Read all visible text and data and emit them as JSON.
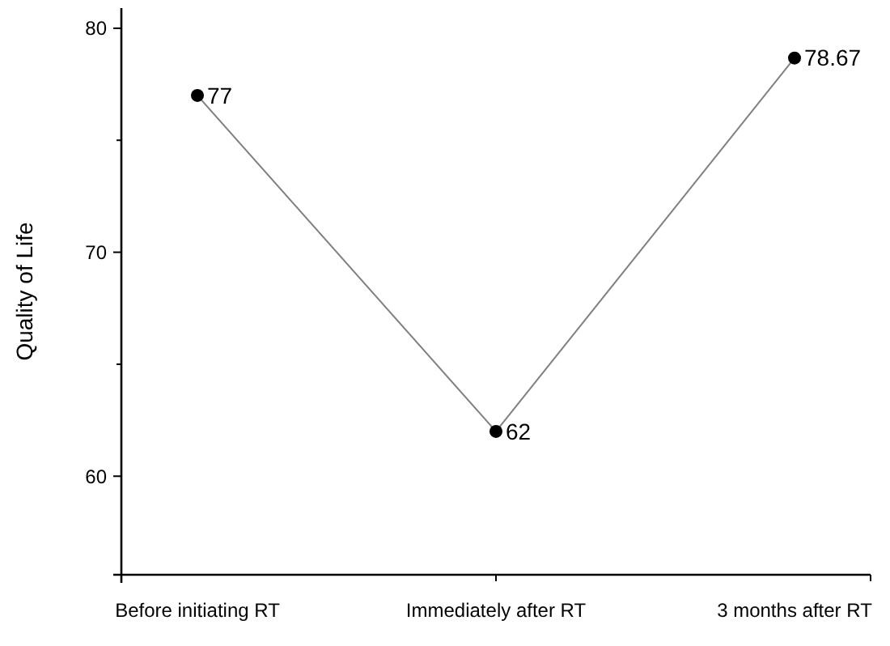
{
  "chart_data": {
    "type": "line",
    "ylabel": "Quality of Life",
    "categories": [
      "Before initiating RT",
      "Immediately after RT",
      "3 months after RT"
    ],
    "series": [
      {
        "color": "#808080",
        "values": [
          77,
          62,
          78.67
        ]
      }
    ],
    "marker": "circle",
    "data_labels": true,
    "ylim": [
      55.6,
      80.9
    ],
    "yticks": [
      60,
      {
        "value": 65,
        "label": null
      },
      70,
      {
        "value": 75,
        "label": null
      },
      80
    ]
  }
}
